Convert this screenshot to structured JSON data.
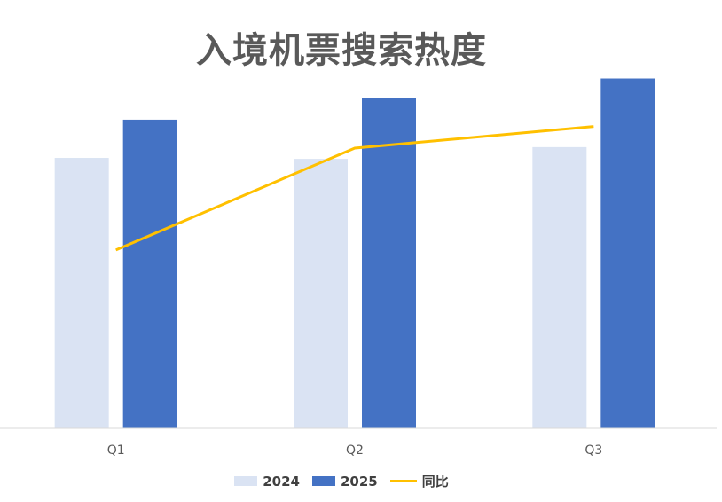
{
  "chart_data": {
    "type": "bar",
    "title": "入境机票搜索热度",
    "categories": [
      "Q1",
      "Q2",
      "Q3"
    ],
    "series": [
      {
        "name": "2024",
        "type": "bar",
        "color": "#DAE3F3",
        "values": [
          276,
          275,
          287
        ]
      },
      {
        "name": "2025",
        "type": "bar",
        "color": "#4472C4",
        "values": [
          315,
          337,
          357
        ]
      },
      {
        "name": "同比",
        "type": "line",
        "color": "#FFC000",
        "values": [
          182,
          286,
          308
        ]
      }
    ],
    "ylim": [
      0,
      400
    ],
    "grid": false,
    "legend_position": "bottom"
  }
}
